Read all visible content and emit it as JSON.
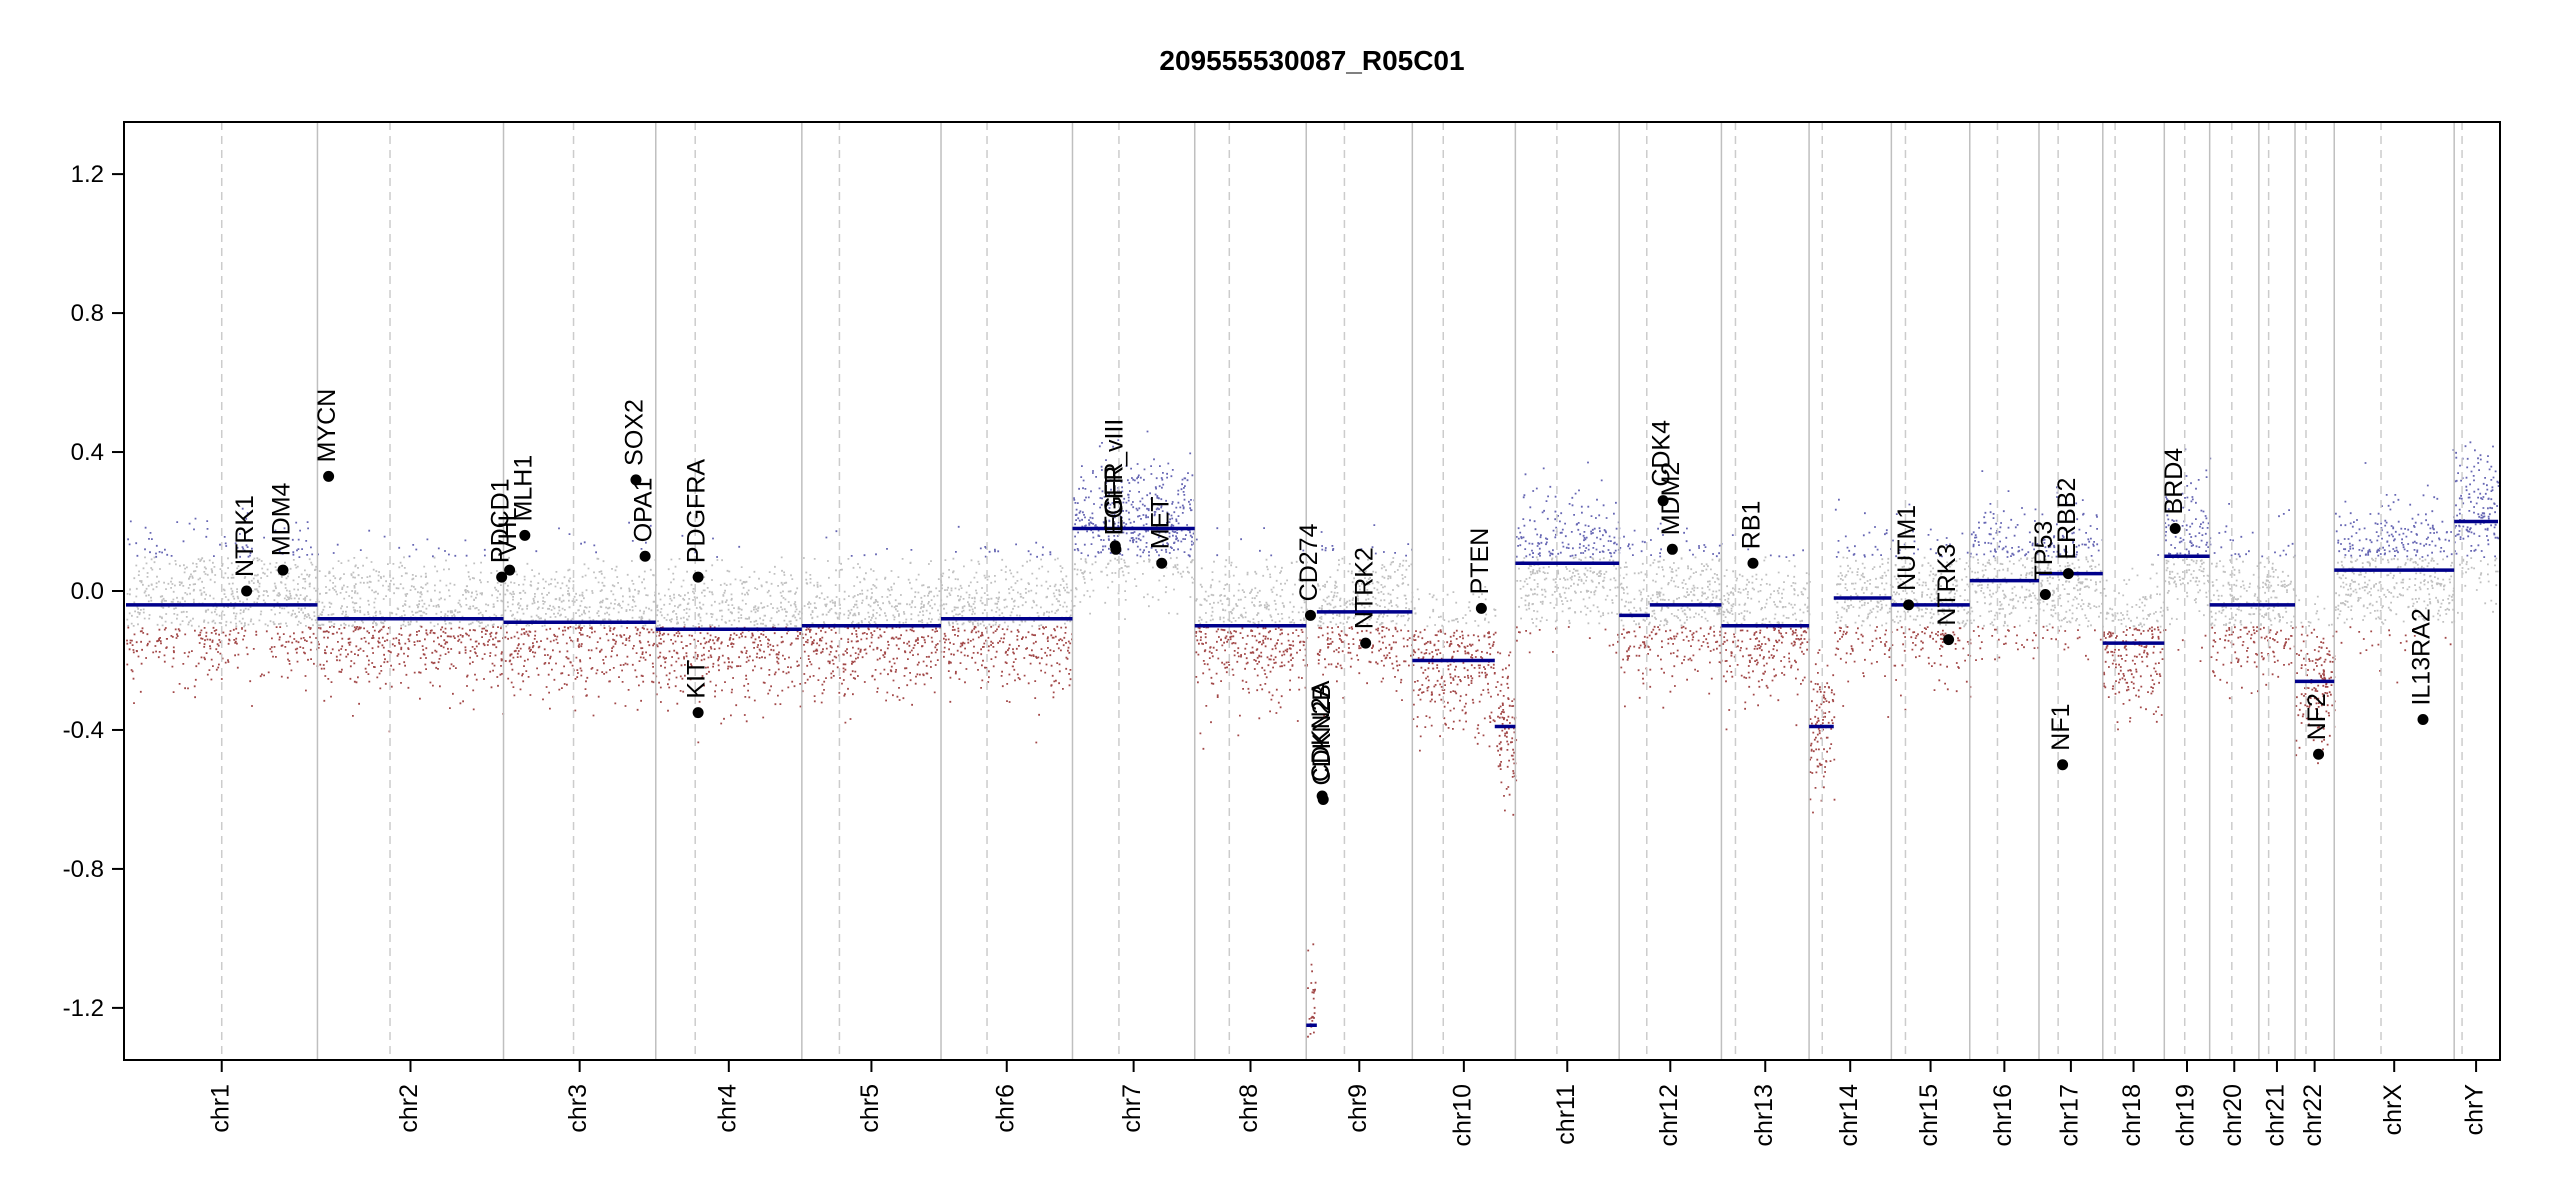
{
  "chart_data": {
    "type": "scatter",
    "title": "209555530087_R05C01",
    "xlabel": "",
    "ylabel": "",
    "ylim": [
      -1.35,
      1.35
    ],
    "y_ticks": [
      {
        "value": 1.2,
        "label": "1.2"
      },
      {
        "value": 0.8,
        "label": "0.8"
      },
      {
        "value": 0.4,
        "label": "0.4"
      },
      {
        "value": 0.0,
        "label": "0.0"
      },
      {
        "value": -0.4,
        "label": "-0.4"
      },
      {
        "value": -0.8,
        "label": "-0.8"
      },
      {
        "value": -1.2,
        "label": "-1.2"
      }
    ],
    "colors": {
      "gain": "#4040a0",
      "loss": "#8b1a1a",
      "neutral": "#b0b0b0",
      "segment": "#00008b",
      "gene": "#000000",
      "boundary": "#bfbfbf",
      "centromere": "#cccccc"
    },
    "chromosomes": [
      {
        "name": "chr1",
        "length": 249,
        "centromere": 0.5
      },
      {
        "name": "chr2",
        "length": 242,
        "centromere": 0.39
      },
      {
        "name": "chr3",
        "length": 198,
        "centromere": 0.46
      },
      {
        "name": "chr4",
        "length": 190,
        "centromere": 0.27
      },
      {
        "name": "chr5",
        "length": 181,
        "centromere": 0.27
      },
      {
        "name": "chr6",
        "length": 171,
        "centromere": 0.35
      },
      {
        "name": "chr7",
        "length": 159,
        "centromere": 0.38
      },
      {
        "name": "chr8",
        "length": 145,
        "centromere": 0.31
      },
      {
        "name": "chr9",
        "length": 138,
        "centromere": 0.36
      },
      {
        "name": "chr10",
        "length": 134,
        "centromere": 0.3
      },
      {
        "name": "chr11",
        "length": 135,
        "centromere": 0.4
      },
      {
        "name": "chr12",
        "length": 133,
        "centromere": 0.27
      },
      {
        "name": "chr13",
        "length": 114,
        "centromere": 0.16
      },
      {
        "name": "chr14",
        "length": 107,
        "centromere": 0.16
      },
      {
        "name": "chr15",
        "length": 102,
        "centromere": 0.18
      },
      {
        "name": "chr16",
        "length": 90,
        "centromere": 0.4
      },
      {
        "name": "chr17",
        "length": 83,
        "centromere": 0.3
      },
      {
        "name": "chr18",
        "length": 80,
        "centromere": 0.2
      },
      {
        "name": "chr19",
        "length": 59,
        "centromere": 0.45
      },
      {
        "name": "chr20",
        "length": 64,
        "centromere": 0.45
      },
      {
        "name": "chr21",
        "length": 47,
        "centromere": 0.27
      },
      {
        "name": "chr22",
        "length": 51,
        "centromere": 0.28
      },
      {
        "name": "chrX",
        "length": 156,
        "centromere": 0.39
      },
      {
        "name": "chrY",
        "length": 57,
        "centromere": 0.18
      }
    ],
    "segments": [
      {
        "chr": "chr1",
        "start": 0.0,
        "end": 1.0,
        "value": -0.04
      },
      {
        "chr": "chr2",
        "start": 0.0,
        "end": 1.0,
        "value": -0.08
      },
      {
        "chr": "chr3",
        "start": 0.0,
        "end": 1.0,
        "value": -0.09
      },
      {
        "chr": "chr4",
        "start": 0.0,
        "end": 1.0,
        "value": -0.11
      },
      {
        "chr": "chr5",
        "start": 0.0,
        "end": 1.0,
        "value": -0.1
      },
      {
        "chr": "chr6",
        "start": 0.0,
        "end": 1.0,
        "value": -0.08
      },
      {
        "chr": "chr7",
        "start": 0.0,
        "end": 1.0,
        "value": 0.18
      },
      {
        "chr": "chr8",
        "start": 0.0,
        "end": 1.0,
        "value": -0.1
      },
      {
        "chr": "chr9",
        "start": 0.0,
        "end": 0.1,
        "value": -1.25
      },
      {
        "chr": "chr9",
        "start": 0.1,
        "end": 1.0,
        "value": -0.06
      },
      {
        "chr": "chr10",
        "start": 0.0,
        "end": 0.8,
        "value": -0.2
      },
      {
        "chr": "chr10",
        "start": 0.8,
        "end": 1.0,
        "value": -0.39
      },
      {
        "chr": "chr11",
        "start": 0.0,
        "end": 1.0,
        "value": 0.08
      },
      {
        "chr": "chr12",
        "start": 0.0,
        "end": 0.3,
        "value": -0.07
      },
      {
        "chr": "chr12",
        "start": 0.3,
        "end": 1.0,
        "value": -0.04
      },
      {
        "chr": "chr13",
        "start": 0.0,
        "end": 1.0,
        "value": -0.1
      },
      {
        "chr": "chr14",
        "start": 0.0,
        "end": 0.3,
        "value": -0.39
      },
      {
        "chr": "chr14",
        "start": 0.3,
        "end": 1.0,
        "value": -0.02
      },
      {
        "chr": "chr15",
        "start": 0.0,
        "end": 1.0,
        "value": -0.04
      },
      {
        "chr": "chr16",
        "start": 0.0,
        "end": 1.0,
        "value": 0.03
      },
      {
        "chr": "chr17",
        "start": 0.0,
        "end": 1.0,
        "value": 0.05
      },
      {
        "chr": "chr18",
        "start": 0.0,
        "end": 1.0,
        "value": -0.15
      },
      {
        "chr": "chr19",
        "start": 0.0,
        "end": 1.0,
        "value": 0.1
      },
      {
        "chr": "chr20",
        "start": 0.0,
        "end": 1.0,
        "value": -0.04
      },
      {
        "chr": "chr21",
        "start": 0.0,
        "end": 1.0,
        "value": -0.04
      },
      {
        "chr": "chr22",
        "start": 0.0,
        "end": 1.0,
        "value": -0.26
      },
      {
        "chr": "chrX",
        "start": 0.0,
        "end": 1.0,
        "value": 0.06
      },
      {
        "chr": "chrY",
        "start": 0.0,
        "end": 1.0,
        "value": 0.2
      }
    ],
    "genes": [
      {
        "name": "NTRK1",
        "chr": "chr1",
        "pos": 0.63,
        "value": 0.0
      },
      {
        "name": "MDM4",
        "chr": "chr1",
        "pos": 0.82,
        "value": 0.06
      },
      {
        "name": "MYCN",
        "chr": "chr2",
        "pos": 0.06,
        "value": 0.33
      },
      {
        "name": "PDCD1",
        "chr": "chr2",
        "pos": 0.99,
        "value": 0.04
      },
      {
        "name": "VHL",
        "chr": "chr3",
        "pos": 0.04,
        "value": 0.06
      },
      {
        "name": "MLH1",
        "chr": "chr3",
        "pos": 0.14,
        "value": 0.16
      },
      {
        "name": "SOX2",
        "chr": "chr3",
        "pos": 0.87,
        "value": 0.32
      },
      {
        "name": "OPA1",
        "chr": "chr3",
        "pos": 0.93,
        "value": 0.1
      },
      {
        "name": "PDGFRA",
        "chr": "chr4",
        "pos": 0.29,
        "value": 0.04
      },
      {
        "name": "KIT",
        "chr": "chr4",
        "pos": 0.29,
        "value": -0.35
      },
      {
        "name": "EGFR",
        "chr": "chr7",
        "pos": 0.35,
        "value": 0.13
      },
      {
        "name": "EGFR_vIII",
        "chr": "chr7",
        "pos": 0.355,
        "value": 0.12
      },
      {
        "name": "MET",
        "chr": "chr7",
        "pos": 0.73,
        "value": 0.08
      },
      {
        "name": "CD274",
        "chr": "chr9",
        "pos": 0.04,
        "value": -0.07
      },
      {
        "name": "CDKN2A",
        "chr": "chr9",
        "pos": 0.15,
        "value": -0.59
      },
      {
        "name": "CDKN2B",
        "chr": "chr9",
        "pos": 0.16,
        "value": -0.6
      },
      {
        "name": "NTRK2",
        "chr": "chr9",
        "pos": 0.56,
        "value": -0.15
      },
      {
        "name": "PTEN",
        "chr": "chr10",
        "pos": 0.67,
        "value": -0.05
      },
      {
        "name": "CDK4",
        "chr": "chr12",
        "pos": 0.43,
        "value": 0.26
      },
      {
        "name": "MDM2",
        "chr": "chr12",
        "pos": 0.52,
        "value": 0.12
      },
      {
        "name": "RB1",
        "chr": "chr13",
        "pos": 0.36,
        "value": 0.08
      },
      {
        "name": "NUTM1",
        "chr": "chr15",
        "pos": 0.22,
        "value": -0.04
      },
      {
        "name": "NTRK3",
        "chr": "chr15",
        "pos": 0.73,
        "value": -0.14
      },
      {
        "name": "TP53",
        "chr": "chr17",
        "pos": 0.1,
        "value": -0.01
      },
      {
        "name": "NF1",
        "chr": "chr17",
        "pos": 0.37,
        "value": -0.5
      },
      {
        "name": "ERBB2",
        "chr": "chr17",
        "pos": 0.46,
        "value": 0.05
      },
      {
        "name": "BRD4",
        "chr": "chr19",
        "pos": 0.24,
        "value": 0.18
      },
      {
        "name": "NF2",
        "chr": "chr22",
        "pos": 0.6,
        "value": -0.47
      },
      {
        "name": "IL13RA2",
        "chr": "chrX",
        "pos": 0.74,
        "value": -0.37
      }
    ]
  }
}
